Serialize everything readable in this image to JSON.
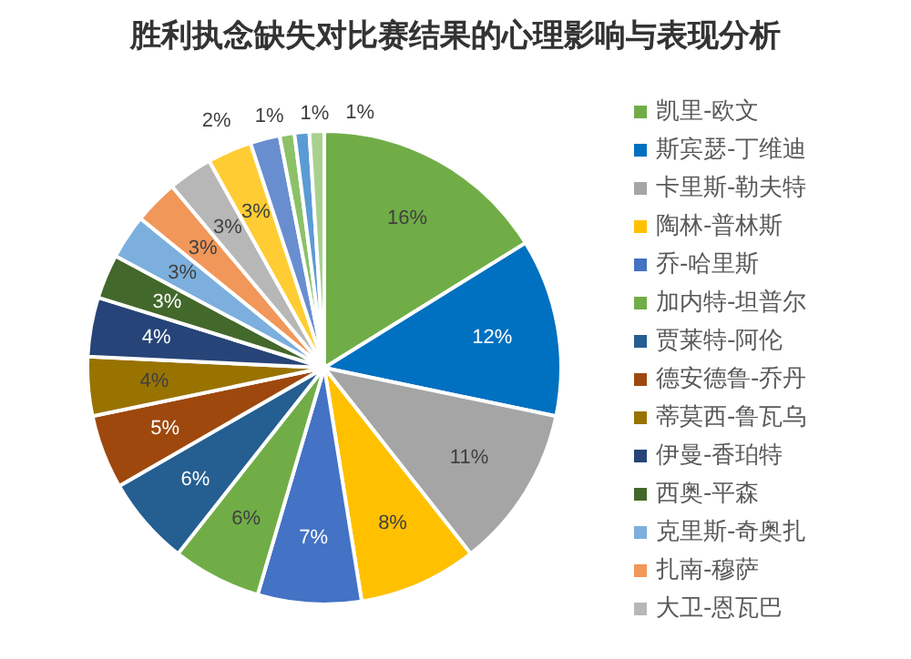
{
  "chart_data": {
    "type": "pie",
    "title": "胜利执念缺失对比赛结果的心理影响与表现分析",
    "categories": [
      "凯里-欧文",
      "斯宾瑟-丁维迪",
      "卡里斯-勒夫特",
      "陶林-普林斯",
      "乔-哈里斯",
      "加内特-坦普尔",
      "贾莱特-阿伦",
      "德安德鲁-乔丹",
      "蒂莫西-鲁瓦乌",
      "伊曼-香珀特",
      "西奥-平森",
      "克里斯-奇奥扎",
      "扎南-穆萨",
      "大卫-恩瓦巴",
      null,
      null,
      null,
      null,
      null
    ],
    "values": [
      16,
      12,
      11,
      8,
      7,
      6,
      6,
      5,
      4,
      4,
      3,
      3,
      3,
      3,
      3,
      2,
      1,
      1,
      1
    ],
    "value_labels": [
      "16%",
      "12%",
      "11%",
      "8%",
      "7%",
      "6%",
      "6%",
      "5%",
      "4%",
      "4%",
      "3%",
      "3%",
      "3%",
      "3%",
      "3%",
      "2%",
      "1%",
      "1%",
      "1%"
    ],
    "colors": [
      "#70ad47",
      "#0070c0",
      "#a5a5a5",
      "#ffc000",
      "#4472c4",
      "#70ad47",
      "#255e91",
      "#9e480e",
      "#997300",
      "#264478",
      "#43682b",
      "#7cafdd",
      "#f1975a",
      "#b7b7b7",
      "#ffcd33",
      "#698ed0",
      "#8cc168",
      "#5b9bd5",
      "#a9d18e"
    ],
    "legend": "right"
  }
}
